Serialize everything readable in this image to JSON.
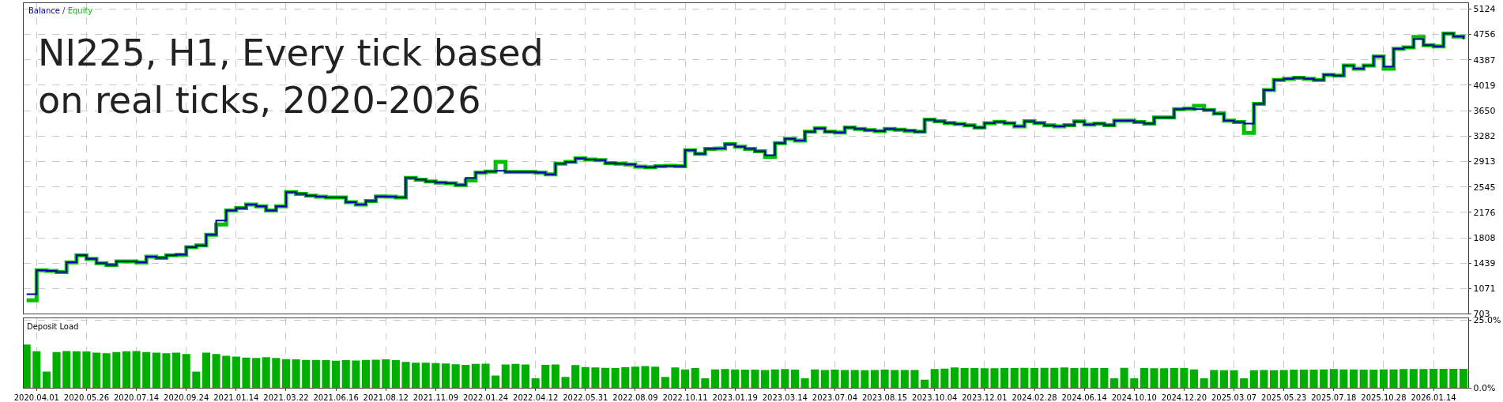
{
  "chart_data": [
    {
      "type": "step",
      "title": "NI225, H1, Every tick based\non real ticks, 2020-2026",
      "legend": "top left",
      "annotations": [
        "/"
      ],
      "grid": true,
      "tick_labels": "y",
      "categories": [
        null,
        "2020.04.01",
        null,
        null,
        null,
        null,
        "2020.05.26",
        null,
        null,
        null,
        null,
        "2020.07.14",
        null,
        null,
        null,
        null,
        "2020.09.24",
        null,
        null,
        null,
        null,
        "2021.01.14",
        null,
        null,
        null,
        null,
        "2021.03.22",
        null,
        null,
        null,
        null,
        "2021.06.16",
        null,
        null,
        null,
        null,
        "2021.08.12",
        null,
        null,
        null,
        null,
        "2021.11.09",
        null,
        null,
        null,
        null,
        "2022.01.24",
        null,
        null,
        null,
        null,
        "2022.04.12",
        null,
        null,
        null,
        null,
        "2022.05.31",
        null,
        null,
        null,
        null,
        "2022.08.09",
        null,
        null,
        null,
        null,
        "2022.10.11",
        null,
        null,
        null,
        null,
        "2023.01.19",
        null,
        null,
        null,
        null,
        "2023.03.14",
        null,
        null,
        null,
        null,
        "2023.07.04",
        null,
        null,
        null,
        null,
        "2023.08.15",
        null,
        null,
        null,
        null,
        "2023.10.04",
        null,
        null,
        null,
        null,
        "2023.12.01",
        null,
        null,
        null,
        null,
        "2024.02.28",
        null,
        null,
        null,
        null,
        "2024.06.14",
        null,
        null,
        null,
        null,
        "2024.10.10",
        null,
        null,
        null,
        null,
        "2024.12.20",
        null,
        null,
        null,
        null,
        "2025.03.07",
        null,
        null,
        null,
        null,
        "2025.05.23",
        null,
        null,
        null,
        null,
        "2025.07.18",
        null,
        null,
        null,
        null,
        "2025.10.28",
        null,
        null,
        null,
        null,
        "2026.01.14",
        null,
        null,
        null
      ],
      "ylim": [
        703,
        5210
      ],
      "yticks": [
        703,
        1071,
        1439,
        1808,
        2176,
        2545,
        2913,
        3282,
        3650,
        4019,
        4387,
        4756,
        5124
      ],
      "series": [
        {
          "name": "Equity",
          "color": "#00c000",
          "values": [
            900,
            1336,
            1326,
            1311,
            1450,
            1553,
            1501,
            1439,
            1414,
            1465,
            1465,
            1450,
            1532,
            1517,
            1553,
            1563,
            1671,
            1697,
            1851,
            2000,
            2202,
            2238,
            2289,
            2264,
            2202,
            2264,
            2469,
            2444,
            2418,
            2403,
            2392,
            2392,
            2325,
            2289,
            2341,
            2408,
            2403,
            2392,
            2675,
            2650,
            2624,
            2608,
            2598,
            2572,
            2640,
            2753,
            2768,
            2907,
            2763,
            2763,
            2763,
            2753,
            2727,
            2881,
            2907,
            2959,
            2943,
            2933,
            2891,
            2881,
            2871,
            2840,
            2830,
            2845,
            2850,
            2845,
            3077,
            3026,
            3098,
            3103,
            3165,
            3129,
            3098,
            3062,
            2980,
            3180,
            3242,
            3216,
            3345,
            3396,
            3345,
            3334,
            3406,
            3385,
            3370,
            3355,
            3385,
            3375,
            3360,
            3345,
            3520,
            3499,
            3473,
            3458,
            3437,
            3406,
            3468,
            3489,
            3468,
            3422,
            3499,
            3473,
            3437,
            3422,
            3441,
            3494,
            3450,
            3463,
            3441,
            3507,
            3507,
            3485,
            3463,
            3551,
            3551,
            3671,
            3680,
            3720,
            3662,
            3609,
            3507,
            3485,
            3330,
            3751,
            3950,
            4096,
            4114,
            4127,
            4114,
            4096,
            4172,
            4158,
            4305,
            4260,
            4305,
            4437,
            4260,
            4548,
            4570,
            4720,
            4601,
            4584,
            4770,
            4725,
            4690
          ]
        },
        {
          "name": "Balance",
          "color": "#0000a0",
          "values": [
            990,
            1336,
            1326,
            1311,
            1450,
            1553,
            1501,
            1439,
            1414,
            1465,
            1465,
            1450,
            1532,
            1517,
            1553,
            1563,
            1671,
            1697,
            1851,
            2057,
            2202,
            2238,
            2289,
            2264,
            2202,
            2264,
            2469,
            2444,
            2418,
            2403,
            2392,
            2392,
            2325,
            2289,
            2341,
            2408,
            2403,
            2392,
            2675,
            2650,
            2624,
            2608,
            2598,
            2572,
            2675,
            2753,
            2768,
            2778,
            2763,
            2763,
            2763,
            2753,
            2727,
            2881,
            2907,
            2959,
            2943,
            2933,
            2891,
            2881,
            2871,
            2840,
            2830,
            2845,
            2850,
            2845,
            3077,
            3026,
            3098,
            3103,
            3165,
            3129,
            3098,
            3062,
            3005,
            3180,
            3242,
            3216,
            3345,
            3396,
            3345,
            3334,
            3406,
            3385,
            3370,
            3355,
            3385,
            3375,
            3360,
            3345,
            3520,
            3499,
            3473,
            3458,
            3437,
            3406,
            3468,
            3489,
            3468,
            3422,
            3499,
            3473,
            3437,
            3422,
            3441,
            3494,
            3450,
            3463,
            3441,
            3507,
            3507,
            3485,
            3463,
            3551,
            3551,
            3671,
            3680,
            3671,
            3662,
            3609,
            3507,
            3485,
            3463,
            3751,
            3950,
            4096,
            4114,
            4127,
            4114,
            4096,
            4172,
            4158,
            4305,
            4260,
            4305,
            4437,
            4291,
            4548,
            4570,
            4690,
            4601,
            4584,
            4770,
            4725,
            4690
          ]
        }
      ]
    },
    {
      "type": "bar",
      "title": "Deposit Load",
      "grid": true,
      "categories": [
        null,
        "2020.04.01",
        null,
        null,
        null,
        null,
        "2020.05.26",
        null,
        null,
        null,
        null,
        "2020.07.14",
        null,
        null,
        null,
        null,
        "2020.09.24",
        null,
        null,
        null,
        null,
        "2021.01.14",
        null,
        null,
        null,
        null,
        "2021.03.22",
        null,
        null,
        null,
        null,
        "2021.06.16",
        null,
        null,
        null,
        null,
        "2021.08.12",
        null,
        null,
        null,
        null,
        "2021.11.09",
        null,
        null,
        null,
        null,
        "2022.01.24",
        null,
        null,
        null,
        null,
        "2022.04.12",
        null,
        null,
        null,
        null,
        "2022.05.31",
        null,
        null,
        null,
        null,
        "2022.08.09",
        null,
        null,
        null,
        null,
        "2022.10.11",
        null,
        null,
        null,
        null,
        "2023.01.19",
        null,
        null,
        null,
        null,
        "2023.03.14",
        null,
        null,
        null,
        null,
        "2023.07.04",
        null,
        null,
        null,
        null,
        "2023.08.15",
        null,
        null,
        null,
        null,
        "2023.10.04",
        null,
        null,
        null,
        null,
        "2023.12.01",
        null,
        null,
        null,
        null,
        "2024.02.28",
        null,
        null,
        null,
        null,
        "2024.06.14",
        null,
        null,
        null,
        null,
        "2024.10.10",
        null,
        null,
        null,
        null,
        "2024.12.20",
        null,
        null,
        null,
        null,
        "2025.03.07",
        null,
        null,
        null,
        null,
        "2025.05.23",
        null,
        null,
        null,
        null,
        "2025.07.18",
        null,
        null,
        null,
        null,
        "2025.10.28",
        null,
        null,
        null,
        null,
        "2026.01.14",
        null,
        null,
        null
      ],
      "ylim": [
        0,
        25.6
      ],
      "yticks": [
        {
          "value": 0,
          "label": "0.0%"
        },
        {
          "value": 25,
          "label": "25.0%"
        }
      ],
      "series": [
        {
          "color": "#00b000",
          "values": [
            16,
            13.5,
            6,
            13.2,
            13.6,
            13.5,
            13.4,
            13,
            12.8,
            13.2,
            13.5,
            13.6,
            13.2,
            13,
            12.8,
            13,
            12.5,
            6,
            13,
            12.5,
            11.8,
            11.5,
            11.2,
            11,
            11.3,
            11,
            10.6,
            10.5,
            10.3,
            10.3,
            10.2,
            10,
            10.2,
            10.1,
            10.3,
            10.4,
            10.5,
            10.2,
            9.6,
            9.3,
            9.3,
            9.1,
            9,
            8.7,
            8.5,
            8.8,
            8.9,
            4.5,
            8.6,
            8.8,
            8.6,
            3.5,
            8.5,
            8.6,
            4,
            8.4,
            7.7,
            7.5,
            7.4,
            7.3,
            7.6,
            7.8,
            8,
            7.8,
            4,
            7.5,
            6.8,
            7.3,
            3.5,
            6.8,
            6.9,
            6.8,
            6.7,
            6.7,
            6.6,
            6.8,
            6.9,
            6.7,
            3.5,
            6.8,
            6.6,
            6.7,
            6.6,
            6.6,
            6.5,
            6.6,
            6.7,
            6.6,
            6.6,
            6.6,
            3,
            6.9,
            7.1,
            7.5,
            7.3,
            7.3,
            7.2,
            7.2,
            7.3,
            7.3,
            7.4,
            7.3,
            7.4,
            7.4,
            7.5,
            7.3,
            7.4,
            7.3,
            7.3,
            3.5,
            7.4,
            3.5,
            7.3,
            7.2,
            7.2,
            7.3,
            7.3,
            6.8,
            3.5,
            6.6,
            6.5,
            6.5,
            3.5,
            6.5,
            6.6,
            6.5,
            6.6,
            6.7,
            6.7,
            6.7,
            6.8,
            6.9,
            6.8,
            6.8,
            6.7,
            6.7,
            6.8,
            6.8,
            6.9,
            6.9,
            6.9,
            7,
            7.0,
            7,
            7.0
          ]
        }
      ]
    }
  ]
}
